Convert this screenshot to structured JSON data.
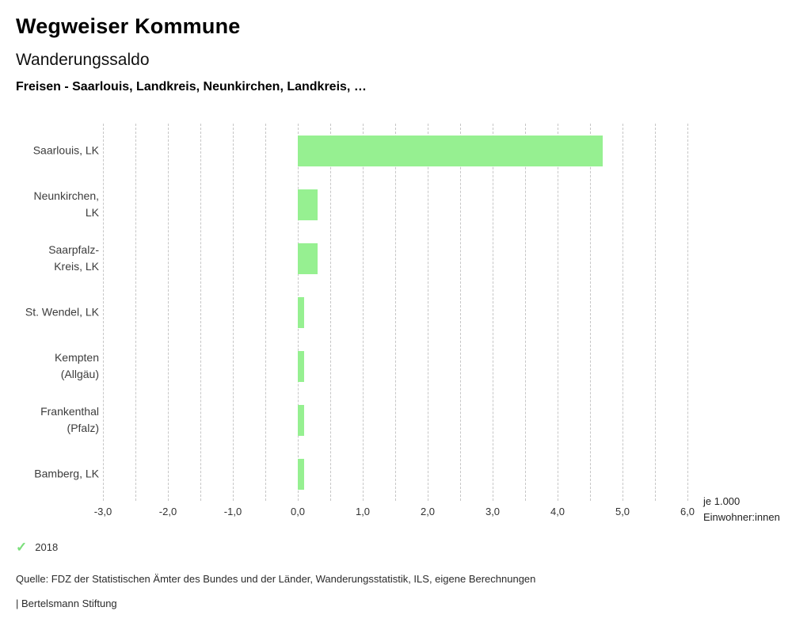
{
  "header": {
    "title": "Wegweiser Kommune",
    "subtitle": "Wanderungssaldo",
    "comparison": "Freisen - Saarlouis, Landkreis, Neunkirchen, Landkreis, …"
  },
  "legend": {
    "year": "2018",
    "check_icon": "checkmark",
    "check_color": "#7bdf7b"
  },
  "footer": {
    "source": "Quelle: FDZ der Statistischen Ämter des Bundes und der Länder, Wanderungsstatistik, ILS, eigene Berechnungen",
    "branding": "| Bertelsmann Stiftung"
  },
  "chart_data": {
    "type": "bar",
    "orientation": "horizontal",
    "title": "Wanderungssaldo",
    "subtitle": "Freisen - Saarlouis, Landkreis, Neunkirchen, Landkreis, …",
    "categories": [
      "Saarlouis, LK",
      "Neunkirchen,\nLK",
      "Saarpfalz-\nKreis, LK",
      "St. Wendel, LK",
      "Kempten\n(Allgäu)",
      "Frankenthal\n(Pfalz)",
      "Bamberg, LK"
    ],
    "series": [
      {
        "name": "2018",
        "values": [
          4.7,
          0.3,
          0.3,
          0.1,
          0.1,
          0.1,
          0.1
        ]
      }
    ],
    "xlabel": "je 1.000\nEinwohner:innen",
    "xlim": [
      -3.0,
      6.0
    ],
    "xtick_step": 1.0,
    "grid_step": 0.5,
    "xtick_labels": [
      "-3,0",
      "-2,0",
      "-1,0",
      "0,0",
      "1,0",
      "2,0",
      "3,0",
      "4,0",
      "5,0",
      "6,0"
    ],
    "grid": true,
    "legend_position": "bottom-left",
    "bar_color": "#96f091",
    "grid_color": "#c6c6c6"
  }
}
